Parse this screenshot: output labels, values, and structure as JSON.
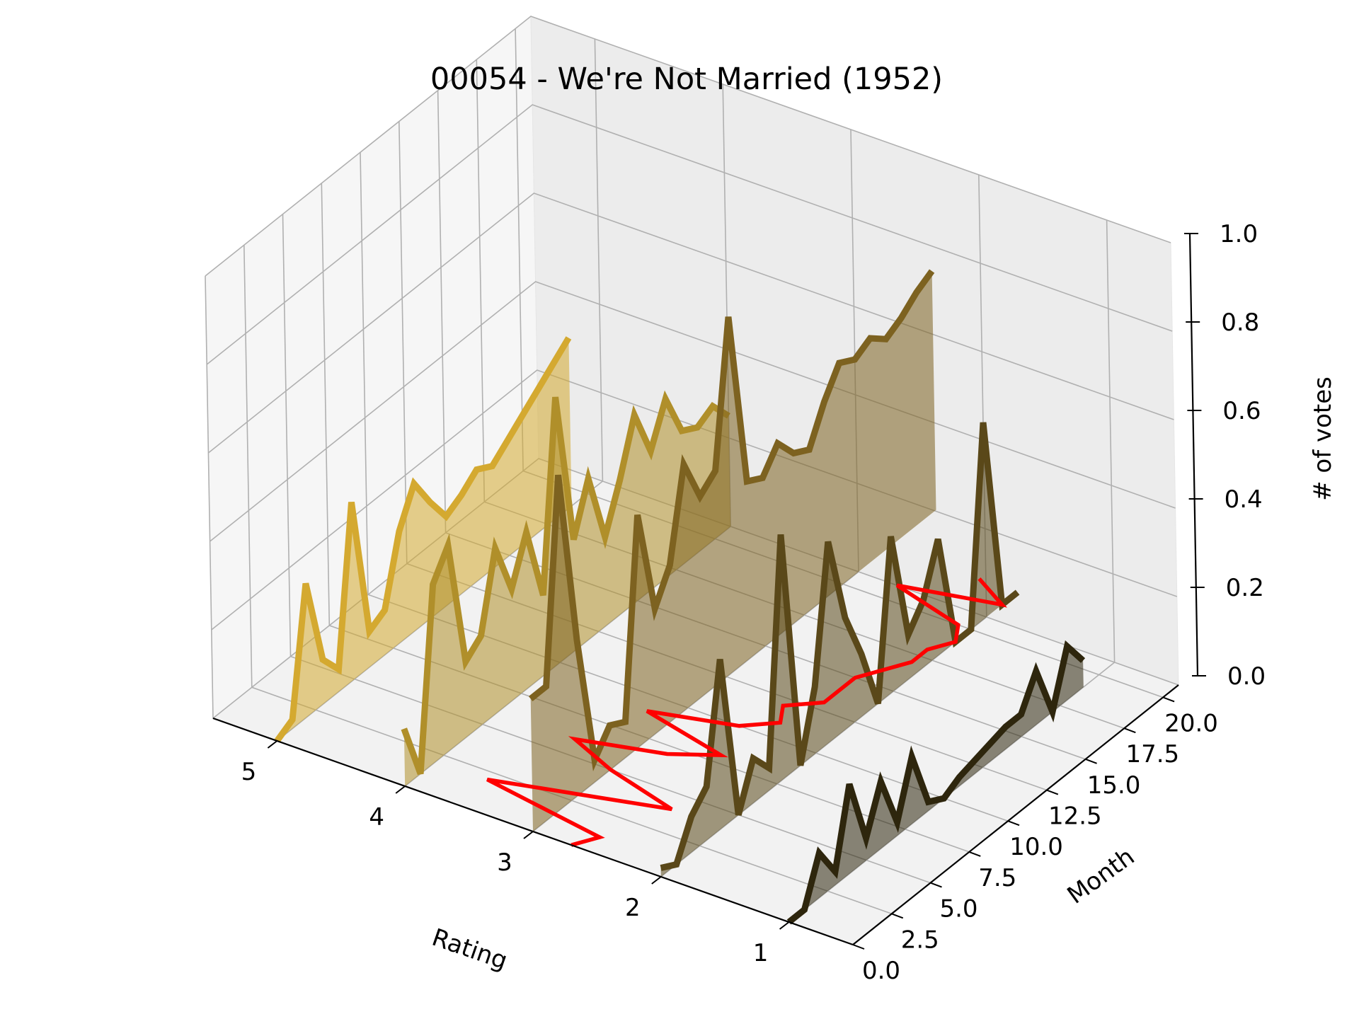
{
  "chart_data": {
    "type": "line",
    "subtype": "3d-waterfall",
    "title": "00054 - We're Not Married (1952)",
    "xlabel": "Rating",
    "ylabel": "Month",
    "zlabel": "# of votes",
    "x_ticks": [
      "5",
      "4",
      "3",
      "2",
      "1"
    ],
    "y_ticks": [
      "0.0",
      "2.5",
      "5.0",
      "7.5",
      "10.0",
      "12.5",
      "15.0",
      "17.5",
      "20.0"
    ],
    "z_ticks": [
      "0.0",
      "0.2",
      "0.4",
      "0.6",
      "0.8",
      "1.0"
    ],
    "xlim": [
      0.5,
      5.5
    ],
    "ylim": [
      0,
      21
    ],
    "zlim": [
      0,
      1
    ],
    "grid": true,
    "series": [
      {
        "rating": 5,
        "color": "#d4a930",
        "values": [
          0.0,
          0.02,
          0.3,
          0.1,
          0.05,
          0.4,
          0.08,
          0.1,
          0.25,
          0.33,
          0.26,
          0.2,
          0.22,
          0.25,
          0.23,
          0.26,
          0.29,
          0.32,
          0.35,
          0.38
        ]
      },
      {
        "rating": 4,
        "color": "#b08f2a",
        "values": [
          0.13,
          0.0,
          0.4,
          0.46,
          0.17,
          0.2,
          0.37,
          0.25,
          0.35,
          0.18,
          0.6,
          0.25,
          0.36,
          0.2,
          0.3,
          0.42,
          0.31,
          0.4,
          0.3,
          0.28,
          0.3,
          0.25
        ]
      },
      {
        "rating": 3,
        "color": "#7d6220",
        "values": [
          0.3,
          0.3,
          0.75,
          0.35,
          0.05,
          0.1,
          0.08,
          0.52,
          0.28,
          0.35,
          0.55,
          0.45,
          0.48,
          0.8,
          0.4,
          0.38,
          0.43,
          0.38,
          0.36,
          0.44,
          0.5,
          0.48,
          0.5,
          0.47,
          0.49,
          0.52,
          0.54
        ]
      },
      {
        "rating": 2,
        "color": "#5a4819",
        "values": [
          0.02,
          0.0,
          0.08,
          0.12,
          0.38,
          0.0,
          0.1,
          0.05,
          0.55,
          0.0,
          0.15,
          0.45,
          0.25,
          0.14,
          0.0,
          0.35,
          0.1,
          0.15,
          0.26,
          0.0,
          0.0,
          0.44,
          0.0,
          0.0
        ]
      },
      {
        "rating": 1,
        "color": "#2e260d",
        "values": [
          0.0,
          0.0,
          0.1,
          0.03,
          0.2,
          0.05,
          0.15,
          0.03,
          0.15,
          0.02,
          0.0,
          0.02,
          0.03,
          0.04,
          0.05,
          0.05,
          0.12,
          0.0,
          0.12,
          0.06
        ]
      }
    ],
    "mean_rating_line": {
      "color": "#ff0000",
      "values": [
        2.7,
        2.6,
        3.6,
        3.0,
        2.4,
        3.0,
        3.4,
        2.8,
        2.5,
        3.2,
        2.6,
        2.4,
        2.5,
        2.3,
        2.3,
        2.3,
        2.2,
        2.1,
        2.1,
        2.0,
        2.1,
        2.7,
        2.0,
        2.3
      ]
    }
  }
}
